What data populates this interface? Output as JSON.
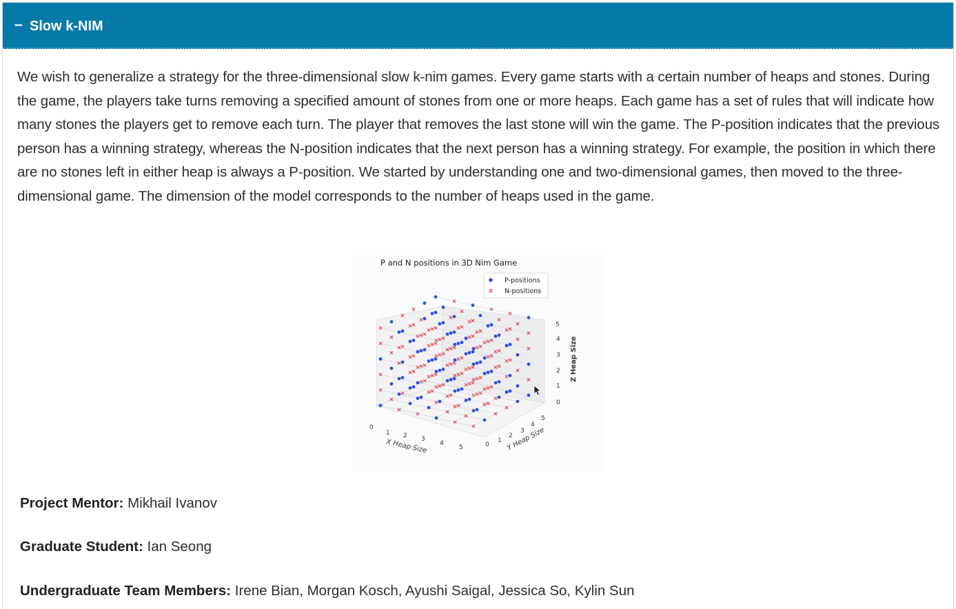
{
  "section": {
    "toggle_symbol": "–",
    "title": "Slow k-NIM"
  },
  "description": "We wish to generalize a strategy for the three-dimensional slow k-nim games. Every game starts with a certain number of heaps and stones. During the game, the players take turns removing a specified amount of stones from one or more heaps. Each game has a set of rules that will indicate how many stones the players get to remove each turn. The player that removes the last stone will win the game. The P-position indicates that the previous person has a winning strategy, whereas the N-position indicates that the next person has a winning strategy. For example, the position in which there are no stones left in either heap is always a P-position. We started by understanding one and two-dimensional games, then moved to the three-dimensional game. The dimension of the model corresponds to the number of heaps used in the game.",
  "figure": {
    "title": "P and N positions in 3D Nim Game",
    "legend": [
      {
        "label": "P-positions",
        "marker": "dot",
        "color": "#1f3fd8"
      },
      {
        "label": "N-positions",
        "marker": "x",
        "color": "#d9363e"
      }
    ],
    "x_axis_label": "X Heap Size",
    "y_axis_label": "Y Heap Size",
    "z_axis_label": "Z Heap Size",
    "x_ticks": [
      "0",
      "1",
      "2",
      "3",
      "4",
      "5"
    ],
    "y_ticks": [
      "0",
      "1",
      "2",
      "3",
      "4",
      "5"
    ],
    "z_ticks": [
      "0",
      "1",
      "2",
      "3",
      "4",
      "5"
    ]
  },
  "team": {
    "mentor_label": "Project Mentor:",
    "mentor": "Mikhail Ivanov",
    "grad_label": "Graduate Student:",
    "grad": "Ian Seong",
    "undergrad_label": "Undergraduate Team Members:",
    "undergrads": "Irene Bian, Morgan Kosch, Ayushi Saigal, Jessica So, Kylin Sun"
  }
}
